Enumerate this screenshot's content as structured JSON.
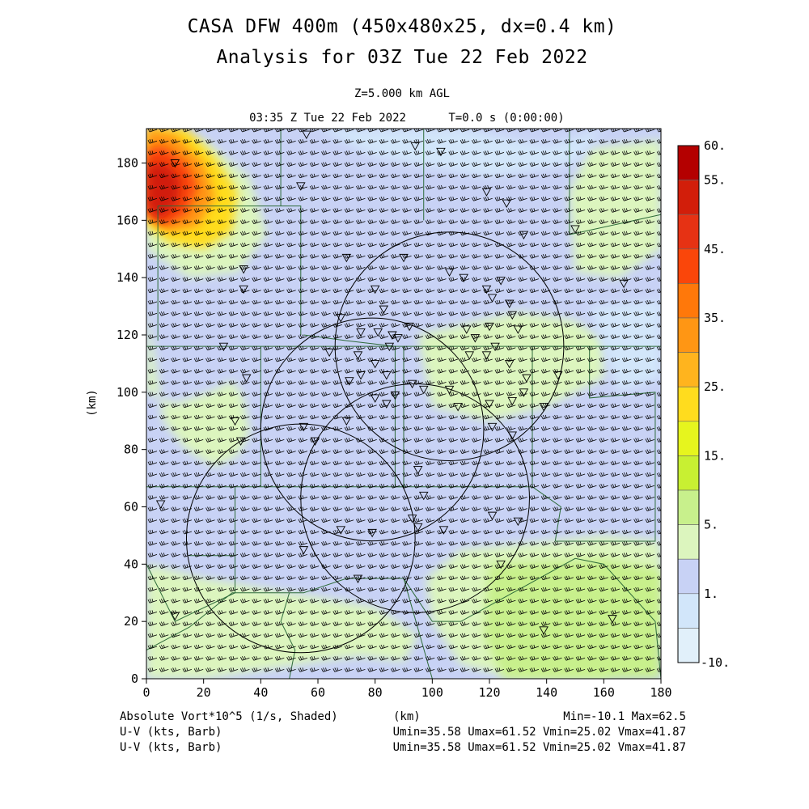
{
  "header": {
    "title_line1": "CASA DFW 400m (450x480x25, dx=0.4 km)",
    "title_line2": "Analysis for 03Z Tue 22 Feb 2022",
    "level": "Z=5.000 km AGL",
    "valid_time": "03:35 Z Tue 22 Feb 2022",
    "t_stamp": "T=0.0 s (0:00:00)"
  },
  "colors": {
    "state_lines": "#2e6b3a",
    "radar_rings": "#000000",
    "barbs": "#000000"
  },
  "chart_data": {
    "type": "heatmap",
    "x_axis": {
      "label": "(km)",
      "range": [
        0,
        180
      ],
      "ticks": [
        "0",
        "20",
        "40",
        "60",
        "80",
        "100",
        "120",
        "140",
        "160",
        "180"
      ]
    },
    "y_axis": {
      "label": "(km)",
      "range": [
        0,
        192
      ],
      "ticks": [
        "0",
        "20",
        "40",
        "60",
        "80",
        "100",
        "120",
        "140",
        "160",
        "180"
      ]
    },
    "colorbar": {
      "labels": [
        "60.",
        "55.",
        "45.",
        "35.",
        "25.",
        "15.",
        "5.",
        "1.",
        "-10."
      ],
      "colors": [
        "#b40000",
        "#d21e0a",
        "#e63214",
        "#fa460a",
        "#ff780a",
        "#ff9614",
        "#ffb41e",
        "#ffdc1e",
        "#e6f51e",
        "#c8f032",
        "#c8f08c",
        "#dcf5be",
        "#c8d2f5",
        "#d2e6fa",
        "#e1f0fa"
      ]
    },
    "shading_regions": [
      {
        "x": [
          0,
          0,
          5,
          18,
          30,
          36,
          36,
          28,
          20,
          12,
          0
        ],
        "y": [
          192,
          170,
          160,
          150,
          148,
          155,
          170,
          182,
          192,
          192,
          192
        ],
        "level": "15-25"
      },
      {
        "x": [
          0,
          0,
          6,
          14,
          22,
          26,
          22,
          14,
          6,
          0
        ],
        "y": [
          192,
          172,
          162,
          156,
          160,
          168,
          180,
          188,
          192,
          192
        ],
        "level": "35-45"
      },
      {
        "x": [
          0,
          0,
          6,
          12,
          16,
          12,
          6,
          0
        ],
        "y": [
          175,
          162,
          156,
          158,
          166,
          174,
          178,
          175
        ],
        "level": "55-60"
      }
    ],
    "radar_rings": [
      {
        "cx": 106,
        "cy": 116,
        "r": 40
      },
      {
        "cx": 79,
        "cy": 87,
        "r": 39
      },
      {
        "cx": 94,
        "cy": 63,
        "r": 40
      },
      {
        "cx": 54,
        "cy": 49,
        "r": 40
      }
    ],
    "footer": {
      "field": "Absolute Vort*10^5 (1/s, Shaded)",
      "xunit": "(km)",
      "minmax": "Min=-10.1 Max=62.5",
      "barb1_label": "U-V (kts, Barb)",
      "barb1_stats": "Umin=35.58 Umax=61.52 Vmin=25.02 Vmax=41.87",
      "barb2_label": "U-V (kts, Barb)",
      "barb2_stats": "Umin=35.58 Umax=61.52 Vmin=25.02 Vmax=41.87"
    }
  }
}
